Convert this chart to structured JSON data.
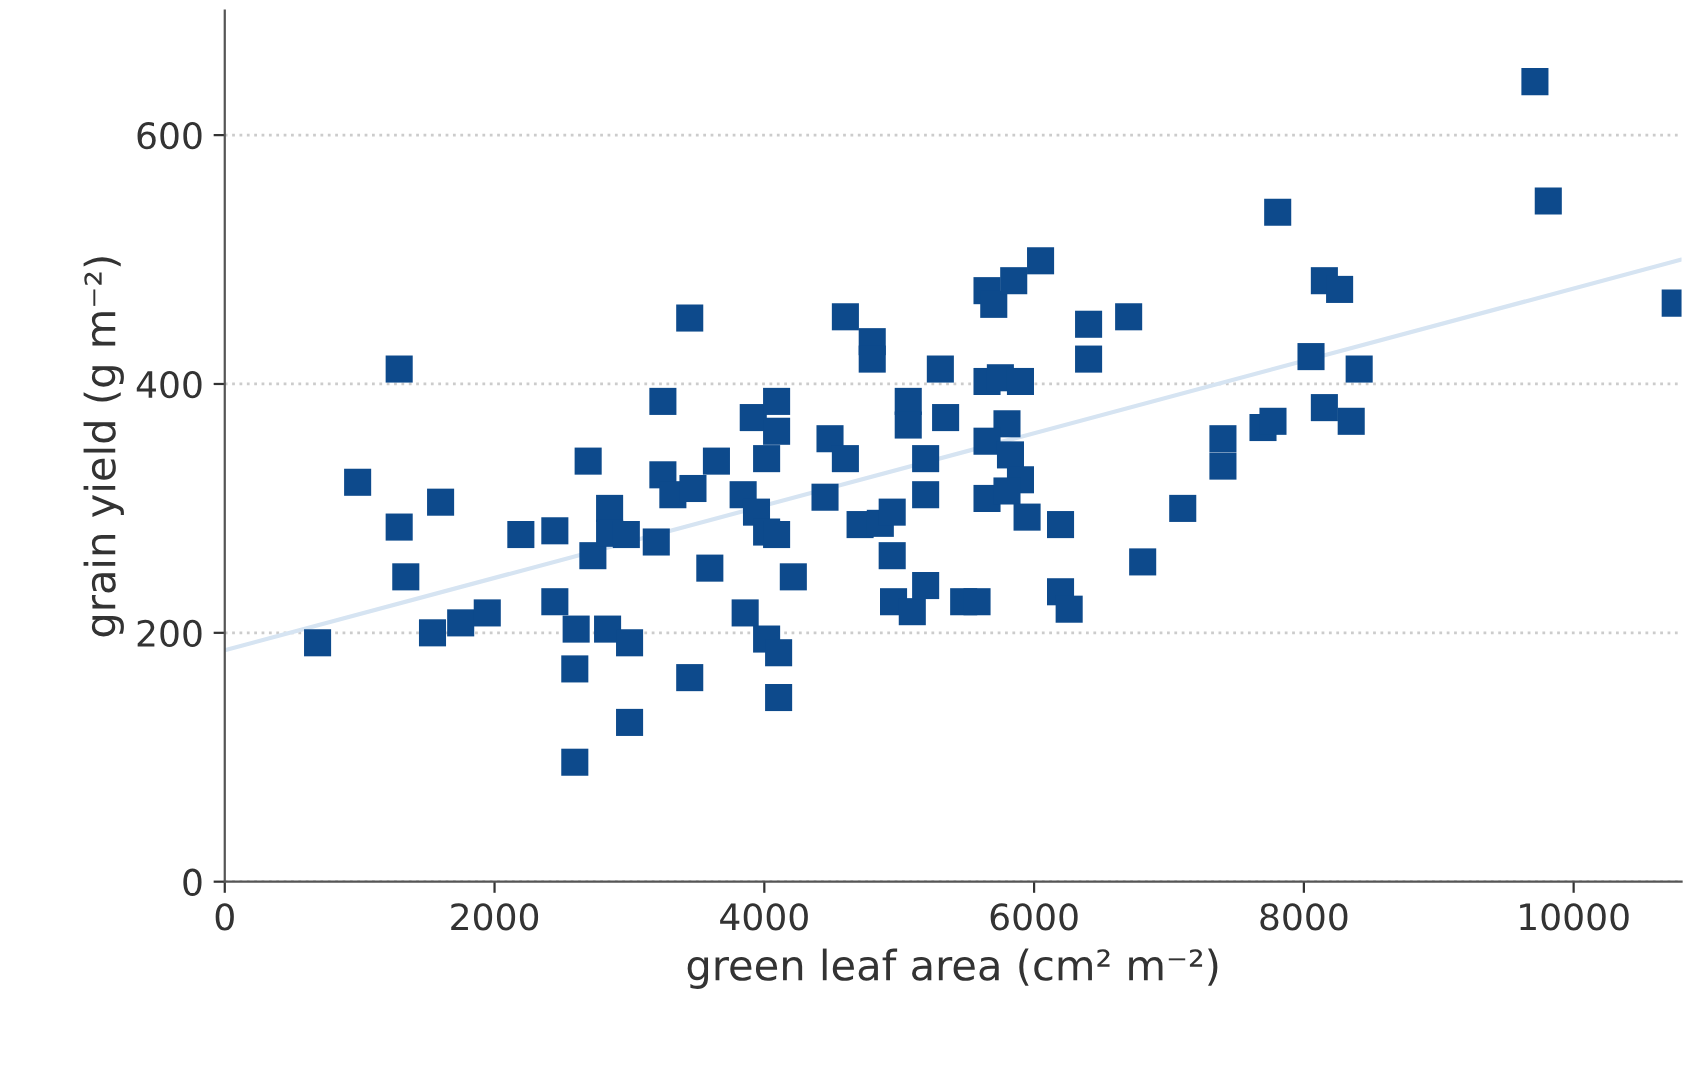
{
  "chart_data": {
    "type": "scatter",
    "xlabel": "green leaf area (cm² m⁻²)",
    "ylabel": "grain yield (g m⁻²)",
    "xlim": [
      0,
      10800
    ],
    "ylim": [
      0,
      700
    ],
    "xticks": [
      0,
      2000,
      4000,
      6000,
      8000,
      10000
    ],
    "yticks": [
      0,
      200,
      400,
      600
    ],
    "grid": "y",
    "marker": "square",
    "series": [
      {
        "color": "#0d4a8c",
        "x": [
          688,
          985,
          1293,
          1293,
          1342,
          1600,
          1540,
          1749,
          1946,
          2195,
          2447,
          2447,
          2605,
          2595,
          2595,
          2694,
          2729,
          2853,
          2853,
          2838,
          3001,
          3001,
          2977,
          3199,
          3248,
          3248,
          3322,
          3471,
          3447,
          3447,
          3596,
          3645,
          3843,
          3858,
          3918,
          3942,
          4017,
          4017,
          4017,
          4091,
          4091,
          4091,
          4106,
          4106,
          4215,
          4450,
          4487,
          4601,
          4601,
          4800,
          4800,
          4710,
          4860,
          4948,
          4948,
          4958,
          5097,
          5067,
          5067,
          5196,
          5196,
          5305,
          5344,
          5196,
          5478,
          5577,
          5651,
          5701,
          5849,
          6048,
          5651,
          5750,
          5899,
          5799,
          5651,
          5825,
          5899,
          5651,
          5799,
          5948,
          6196,
          6196,
          6260,
          6404,
          6404,
          6701,
          6805,
          7102,
          7400,
          7400,
          7697,
          7771,
          7806,
          8053,
          8152,
          8265,
          8152,
          8351,
          8410,
          9713,
          9812,
          10753
        ],
        "values": [
          192,
          321,
          412,
          285,
          245,
          305,
          200,
          208,
          216,
          279,
          282,
          225,
          203,
          171,
          96,
          338,
          262,
          300,
          280,
          203,
          192,
          128,
          279,
          273,
          386,
          327,
          311,
          316,
          453,
          164,
          252,
          338,
          311,
          216,
          373,
          297,
          281,
          340,
          195,
          386,
          362,
          279,
          184,
          148,
          245,
          309,
          356,
          454,
          340,
          434,
          420,
          287,
          288,
          297,
          262,
          225,
          217,
          386,
          367,
          340,
          311,
          412,
          373,
          238,
          225,
          225,
          475,
          464,
          483,
          499,
          402,
          405,
          402,
          368,
          354,
          343,
          323,
          308,
          314,
          293,
          287,
          233,
          219,
          448,
          420,
          454,
          257,
          300,
          356,
          334,
          365,
          370,
          538,
          422,
          483,
          476,
          381,
          370,
          412,
          643,
          547,
          465
        ]
      },
      {
        "type": "line",
        "color": "#d6e4f2",
        "x": [
          0,
          10800
        ],
        "values": [
          186,
          500
        ],
        "line_style": "solid",
        "marker": "none"
      }
    ]
  }
}
